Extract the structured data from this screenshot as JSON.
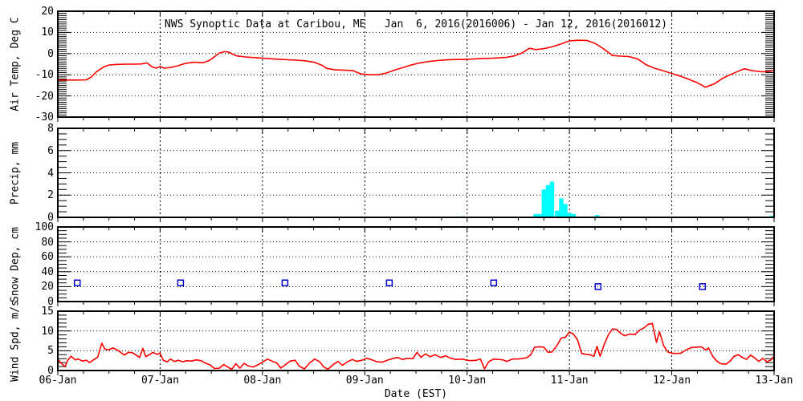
{
  "title": "NWS Synoptic Data at Caribou, ME   Jan  6, 2016(2016006) - Jan 12, 2016(2016012)",
  "colors": {
    "axis": "#000000",
    "temperature_line": "#ff0000",
    "wind_line": "#ff0000",
    "precip_bar": "#00ffff",
    "snow_marker": "#0000cc",
    "background": "#ffffff"
  },
  "x_axis": {
    "label": "Date (EST)",
    "range_days": [
      6,
      13
    ],
    "tick_days": [
      6,
      7,
      8,
      9,
      10,
      11,
      12,
      13
    ],
    "tick_labels": [
      "06-Jan",
      "07-Jan",
      "08-Jan",
      "09-Jan",
      "10-Jan",
      "11-Jan",
      "12-Jan",
      "13-Jan"
    ],
    "minor_tick_step_days": 0.25
  },
  "chart_data": [
    {
      "type": "line",
      "name": "air-temperature",
      "ylabel": "Air Temp, Deg C",
      "ylim": [
        -30,
        20
      ],
      "yticks": [
        20,
        10,
        0,
        -10,
        -20,
        -30
      ],
      "minor_step": 1,
      "color": "#ff0000",
      "points": [
        [
          6.0,
          -12.5
        ],
        [
          6.1,
          -12.5
        ],
        [
          6.2,
          -12.5
        ],
        [
          6.28,
          -12.4
        ],
        [
          6.33,
          -11
        ],
        [
          6.38,
          -8.5
        ],
        [
          6.45,
          -6.3
        ],
        [
          6.5,
          -5.4
        ],
        [
          6.58,
          -5.1
        ],
        [
          6.67,
          -5.0
        ],
        [
          6.75,
          -5.0
        ],
        [
          6.82,
          -4.9
        ],
        [
          6.87,
          -4.4
        ],
        [
          6.92,
          -6.2
        ],
        [
          6.96,
          -6.9
        ],
        [
          7.0,
          -6.1
        ],
        [
          7.04,
          -6.9
        ],
        [
          7.1,
          -6.6
        ],
        [
          7.17,
          -5.8
        ],
        [
          7.25,
          -4.6
        ],
        [
          7.33,
          -4.1
        ],
        [
          7.42,
          -4.3
        ],
        [
          7.48,
          -3.3
        ],
        [
          7.53,
          -1.5
        ],
        [
          7.58,
          0.3
        ],
        [
          7.63,
          0.9
        ],
        [
          7.67,
          0.7
        ],
        [
          7.71,
          -0.3
        ],
        [
          7.75,
          -1.1
        ],
        [
          7.83,
          -1.6
        ],
        [
          7.92,
          -1.9
        ],
        [
          8.0,
          -2.2
        ],
        [
          8.1,
          -2.5
        ],
        [
          8.2,
          -2.8
        ],
        [
          8.33,
          -3.1
        ],
        [
          8.42,
          -3.4
        ],
        [
          8.5,
          -4.0
        ],
        [
          8.58,
          -5.5
        ],
        [
          8.63,
          -7.0
        ],
        [
          8.71,
          -7.7
        ],
        [
          8.79,
          -7.8
        ],
        [
          8.88,
          -8.0
        ],
        [
          8.96,
          -9.6
        ],
        [
          9.04,
          -10.0
        ],
        [
          9.13,
          -10.0
        ],
        [
          9.21,
          -9.2
        ],
        [
          9.29,
          -7.8
        ],
        [
          9.38,
          -6.5
        ],
        [
          9.46,
          -5.3
        ],
        [
          9.54,
          -4.4
        ],
        [
          9.63,
          -3.7
        ],
        [
          9.71,
          -3.3
        ],
        [
          9.79,
          -3.0
        ],
        [
          9.88,
          -2.8
        ],
        [
          9.96,
          -2.8
        ],
        [
          10.04,
          -2.6
        ],
        [
          10.13,
          -2.4
        ],
        [
          10.25,
          -2.2
        ],
        [
          10.38,
          -1.8
        ],
        [
          10.46,
          -1.1
        ],
        [
          10.54,
          0.4
        ],
        [
          10.61,
          2.5
        ],
        [
          10.67,
          1.9
        ],
        [
          10.75,
          2.3
        ],
        [
          10.83,
          3.2
        ],
        [
          10.92,
          4.6
        ],
        [
          11.0,
          6.0
        ],
        [
          11.08,
          6.3
        ],
        [
          11.17,
          6.2
        ],
        [
          11.25,
          4.8
        ],
        [
          11.33,
          2.4
        ],
        [
          11.42,
          -0.9
        ],
        [
          11.5,
          -1.2
        ],
        [
          11.58,
          -1.4
        ],
        [
          11.67,
          -2.6
        ],
        [
          11.75,
          -5.3
        ],
        [
          11.83,
          -6.9
        ],
        [
          11.92,
          -8.2
        ],
        [
          12.0,
          -9.4
        ],
        [
          12.08,
          -10.6
        ],
        [
          12.17,
          -12.2
        ],
        [
          12.25,
          -13.8
        ],
        [
          12.33,
          -15.9
        ],
        [
          12.42,
          -14.2
        ],
        [
          12.5,
          -11.6
        ],
        [
          12.58,
          -9.8
        ],
        [
          12.67,
          -7.9
        ],
        [
          12.71,
          -7.2
        ],
        [
          12.79,
          -8.1
        ],
        [
          12.88,
          -8.6
        ],
        [
          12.96,
          -8.4
        ],
        [
          13.0,
          -7.9
        ]
      ]
    },
    {
      "type": "bar",
      "name": "precipitation",
      "ylabel": "Precip, mm",
      "ylim": [
        0,
        8
      ],
      "yticks": [
        8,
        6,
        4,
        2,
        0
      ],
      "minor_step": 0.5,
      "color": "#00ffff",
      "bar_width_days": 0.042,
      "bars": [
        [
          9.96,
          0.1
        ],
        [
          10.67,
          0.3
        ],
        [
          10.71,
          0.3
        ],
        [
          10.75,
          2.5
        ],
        [
          10.79,
          2.9
        ],
        [
          10.83,
          3.2
        ],
        [
          10.88,
          0.6
        ],
        [
          10.92,
          1.7
        ],
        [
          10.96,
          1.2
        ],
        [
          11.0,
          0.4
        ],
        [
          11.04,
          0.3
        ],
        [
          11.27,
          0.2
        ],
        [
          12.98,
          0.15
        ]
      ]
    },
    {
      "type": "scatter",
      "name": "snow-depth",
      "ylabel": "Snow Dep, cm",
      "ylim": [
        0,
        100
      ],
      "yticks": [
        100,
        80,
        60,
        40,
        20,
        0
      ],
      "minor_step": 5,
      "color": "#0000cc",
      "points": [
        [
          6.19,
          25
        ],
        [
          7.2,
          25
        ],
        [
          8.22,
          25
        ],
        [
          9.24,
          25
        ],
        [
          10.26,
          25
        ],
        [
          11.28,
          20
        ],
        [
          12.3,
          20
        ]
      ]
    },
    {
      "type": "line",
      "name": "wind-speed",
      "ylabel": "Wind Spd, m/s",
      "ylim": [
        0,
        15
      ],
      "yticks": [
        15,
        10,
        5,
        0
      ],
      "minor_step": 1,
      "color": "#ff0000",
      "points": [
        [
          6.0,
          2.9
        ],
        [
          6.03,
          1.9
        ],
        [
          6.07,
          1.0
        ],
        [
          6.1,
          2.7
        ],
        [
          6.13,
          3.6
        ],
        [
          6.17,
          2.7
        ],
        [
          6.2,
          2.9
        ],
        [
          6.24,
          2.4
        ],
        [
          6.28,
          2.6
        ],
        [
          6.31,
          2.0
        ],
        [
          6.35,
          2.7
        ],
        [
          6.39,
          3.4
        ],
        [
          6.43,
          6.9
        ],
        [
          6.46,
          5.4
        ],
        [
          6.5,
          5.3
        ],
        [
          6.54,
          5.7
        ],
        [
          6.58,
          5.2
        ],
        [
          6.62,
          4.5
        ],
        [
          6.65,
          3.9
        ],
        [
          6.69,
          4.6
        ],
        [
          6.73,
          4.5
        ],
        [
          6.76,
          4.0
        ],
        [
          6.8,
          3.3
        ],
        [
          6.83,
          5.6
        ],
        [
          6.86,
          3.5
        ],
        [
          6.9,
          4.1
        ],
        [
          6.93,
          4.6
        ],
        [
          6.97,
          4.1
        ],
        [
          7.0,
          4.4
        ],
        [
          7.03,
          2.6
        ],
        [
          7.07,
          2.2
        ],
        [
          7.1,
          2.9
        ],
        [
          7.14,
          2.3
        ],
        [
          7.18,
          2.6
        ],
        [
          7.22,
          2.2
        ],
        [
          7.26,
          2.5
        ],
        [
          7.31,
          2.4
        ],
        [
          7.35,
          2.7
        ],
        [
          7.4,
          2.5
        ],
        [
          7.44,
          1.9
        ],
        [
          7.49,
          1.4
        ],
        [
          7.53,
          0.5
        ],
        [
          7.58,
          0.6
        ],
        [
          7.62,
          1.5
        ],
        [
          7.66,
          0.9
        ],
        [
          7.7,
          0.3
        ],
        [
          7.74,
          1.7
        ],
        [
          7.78,
          0.6
        ],
        [
          7.82,
          1.8
        ],
        [
          7.86,
          1.2
        ],
        [
          7.91,
          0.9
        ],
        [
          7.96,
          1.5
        ],
        [
          8.0,
          2.1
        ],
        [
          8.05,
          2.9
        ],
        [
          8.1,
          2.3
        ],
        [
          8.14,
          1.9
        ],
        [
          8.18,
          0.6
        ],
        [
          8.23,
          1.6
        ],
        [
          8.27,
          2.4
        ],
        [
          8.32,
          2.6
        ],
        [
          8.36,
          1.1
        ],
        [
          8.41,
          0.4
        ],
        [
          8.46,
          1.9
        ],
        [
          8.51,
          2.9
        ],
        [
          8.56,
          2.2
        ],
        [
          8.6,
          0.9
        ],
        [
          8.64,
          0.3
        ],
        [
          8.69,
          1.5
        ],
        [
          8.74,
          2.3
        ],
        [
          8.78,
          1.3
        ],
        [
          8.83,
          2.2
        ],
        [
          8.88,
          2.8
        ],
        [
          8.92,
          2.3
        ],
        [
          8.97,
          2.6
        ],
        [
          9.02,
          3.1
        ],
        [
          9.07,
          2.7
        ],
        [
          9.12,
          2.2
        ],
        [
          9.17,
          2.1
        ],
        [
          9.22,
          2.6
        ],
        [
          9.27,
          3.0
        ],
        [
          9.32,
          3.3
        ],
        [
          9.37,
          2.8
        ],
        [
          9.42,
          3.1
        ],
        [
          9.47,
          3.0
        ],
        [
          9.51,
          4.6
        ],
        [
          9.55,
          3.3
        ],
        [
          9.59,
          4.2
        ],
        [
          9.64,
          3.5
        ],
        [
          9.69,
          4.0
        ],
        [
          9.74,
          3.3
        ],
        [
          9.79,
          3.7
        ],
        [
          9.84,
          3.1
        ],
        [
          9.89,
          2.8
        ],
        [
          9.95,
          2.9
        ],
        [
          10.0,
          2.6
        ],
        [
          10.04,
          2.5
        ],
        [
          10.09,
          2.6
        ],
        [
          10.13,
          2.9
        ],
        [
          10.17,
          0.4
        ],
        [
          10.21,
          2.2
        ],
        [
          10.26,
          2.9
        ],
        [
          10.3,
          2.8
        ],
        [
          10.35,
          2.7
        ],
        [
          10.39,
          2.3
        ],
        [
          10.44,
          2.9
        ],
        [
          10.49,
          2.9
        ],
        [
          10.53,
          3.0
        ],
        [
          10.58,
          3.2
        ],
        [
          10.62,
          3.9
        ],
        [
          10.66,
          5.9
        ],
        [
          10.71,
          6.0
        ],
        [
          10.75,
          5.9
        ],
        [
          10.79,
          4.6
        ],
        [
          10.83,
          4.7
        ],
        [
          10.88,
          6.4
        ],
        [
          10.92,
          8.2
        ],
        [
          10.96,
          8.4
        ],
        [
          11.0,
          9.7
        ],
        [
          11.04,
          9.2
        ],
        [
          11.08,
          7.7
        ],
        [
          11.12,
          4.3
        ],
        [
          11.16,
          4.1
        ],
        [
          11.2,
          4.0
        ],
        [
          11.24,
          3.6
        ],
        [
          11.27,
          6.1
        ],
        [
          11.3,
          3.6
        ],
        [
          11.34,
          6.6
        ],
        [
          11.38,
          9.0
        ],
        [
          11.42,
          10.5
        ],
        [
          11.46,
          10.4
        ],
        [
          11.5,
          9.4
        ],
        [
          11.54,
          8.8
        ],
        [
          11.59,
          9.2
        ],
        [
          11.64,
          9.1
        ],
        [
          11.69,
          10.3
        ],
        [
          11.73,
          10.8
        ],
        [
          11.77,
          11.7
        ],
        [
          11.81,
          11.9
        ],
        [
          11.85,
          7.1
        ],
        [
          11.88,
          9.8
        ],
        [
          11.92,
          6.3
        ],
        [
          11.96,
          4.7
        ],
        [
          12.0,
          4.4
        ],
        [
          12.05,
          4.3
        ],
        [
          12.09,
          4.4
        ],
        [
          12.14,
          5.2
        ],
        [
          12.19,
          5.8
        ],
        [
          12.24,
          5.9
        ],
        [
          12.29,
          6.0
        ],
        [
          12.33,
          5.2
        ],
        [
          12.36,
          5.7
        ],
        [
          12.4,
          3.6
        ],
        [
          12.44,
          2.4
        ],
        [
          12.48,
          1.7
        ],
        [
          12.53,
          1.6
        ],
        [
          12.57,
          2.4
        ],
        [
          12.61,
          3.6
        ],
        [
          12.65,
          4.0
        ],
        [
          12.69,
          3.3
        ],
        [
          12.73,
          2.8
        ],
        [
          12.77,
          3.9
        ],
        [
          12.81,
          3.2
        ],
        [
          12.85,
          2.3
        ],
        [
          12.89,
          3.1
        ],
        [
          12.93,
          2.2
        ],
        [
          12.97,
          2.7
        ],
        [
          13.0,
          3.6
        ]
      ]
    }
  ]
}
